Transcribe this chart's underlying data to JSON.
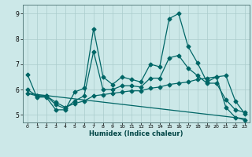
{
  "xlabel": "Humidex (Indice chaleur)",
  "bg_color": "#cce8e8",
  "grid_color": "#aacccc",
  "line_color": "#006666",
  "xlim": [
    -0.5,
    23.5
  ],
  "ylim": [
    4.7,
    9.35
  ],
  "xticks": [
    0,
    1,
    2,
    3,
    4,
    5,
    6,
    7,
    8,
    9,
    10,
    11,
    12,
    13,
    14,
    15,
    16,
    17,
    18,
    19,
    20,
    21,
    22,
    23
  ],
  "yticks": [
    5,
    6,
    7,
    8,
    9
  ],
  "series1_x": [
    0,
    1,
    2,
    3,
    4,
    5,
    6,
    7,
    8,
    9,
    10,
    11,
    12,
    13,
    14,
    15,
    16,
    17,
    18,
    19,
    20,
    21,
    22,
    23
  ],
  "series1_y": [
    6.6,
    5.7,
    5.7,
    5.2,
    5.2,
    5.9,
    6.05,
    8.4,
    6.5,
    6.2,
    6.5,
    6.4,
    6.3,
    7.0,
    6.9,
    8.8,
    9.0,
    7.7,
    7.05,
    6.3,
    6.5,
    5.3,
    4.9,
    4.8
  ],
  "series2_x": [
    0,
    1,
    2,
    3,
    4,
    5,
    6,
    7,
    8,
    9,
    10,
    11,
    12,
    13,
    14,
    15,
    16,
    17,
    18,
    19,
    20,
    21,
    22,
    23
  ],
  "series2_y": [
    6.0,
    5.75,
    5.75,
    5.4,
    5.25,
    5.55,
    5.75,
    7.5,
    6.0,
    6.0,
    6.15,
    6.15,
    6.1,
    6.45,
    6.45,
    7.25,
    7.35,
    6.85,
    6.55,
    6.25,
    6.25,
    5.6,
    5.2,
    5.1
  ],
  "series3_x": [
    0,
    1,
    2,
    3,
    4,
    5,
    6,
    7,
    8,
    9,
    10,
    11,
    12,
    13,
    14,
    15,
    16,
    17,
    18,
    19,
    20,
    21,
    22,
    23
  ],
  "series3_y": [
    5.85,
    5.75,
    5.75,
    5.5,
    5.3,
    5.45,
    5.55,
    5.75,
    5.8,
    5.85,
    5.9,
    5.95,
    5.95,
    6.05,
    6.1,
    6.2,
    6.25,
    6.3,
    6.4,
    6.45,
    6.5,
    6.55,
    5.55,
    5.05
  ],
  "series4_x": [
    0,
    23
  ],
  "series4_y": [
    5.85,
    4.85
  ],
  "markersize": 2.5,
  "linewidth": 0.9
}
